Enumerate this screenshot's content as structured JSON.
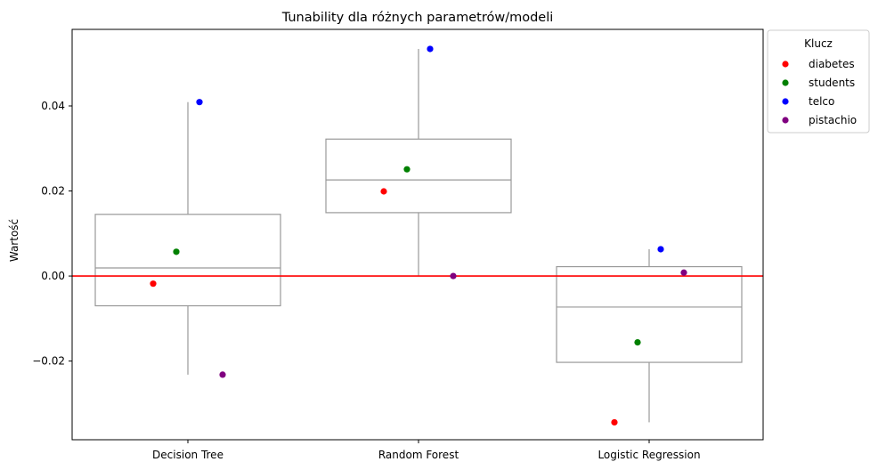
{
  "chart_data": {
    "type": "box",
    "title": "Tunability dla różnych parametrów/modeli",
    "xlabel": "",
    "ylabel": "Wartość",
    "categories": [
      "Decision Tree",
      "Random Forest",
      "Logistic Regression"
    ],
    "ylim": [
      -0.0385,
      0.058
    ],
    "yticks": [
      {
        "value": -0.02,
        "label": "−0.02"
      },
      {
        "value": 0.0,
        "label": "0.00"
      },
      {
        "value": 0.02,
        "label": "0.02"
      },
      {
        "value": 0.04,
        "label": "0.04"
      }
    ],
    "grid": false,
    "boxes": [
      {
        "category": "Decision Tree",
        "whisker_low": -0.0232,
        "q1": -0.007,
        "median": 0.0019,
        "q3": 0.0145,
        "whisker_high": 0.0409
      },
      {
        "category": "Random Forest",
        "whisker_low": 0.0,
        "q1": 0.0149,
        "median": 0.0226,
        "q3": 0.0322,
        "whisker_high": 0.0534
      },
      {
        "category": "Logistic Regression",
        "whisker_low": -0.0344,
        "q1": -0.0203,
        "median": -0.0073,
        "q3": 0.0022,
        "whisker_high": 0.0063
      }
    ],
    "series": [
      {
        "name": "diabetes",
        "color": "#ff0000",
        "values": [
          -0.0018,
          0.0199,
          -0.0344
        ]
      },
      {
        "name": "students",
        "color": "#008000",
        "values": [
          0.0057,
          0.0251,
          -0.0156
        ]
      },
      {
        "name": "telco",
        "color": "#0000ff",
        "values": [
          0.0409,
          0.0534,
          0.0063
        ]
      },
      {
        "name": "pistachio",
        "color": "#800080",
        "values": [
          -0.0232,
          0.0,
          0.0008
        ]
      }
    ],
    "reference_line": {
      "value": 0.0,
      "color": "#ff0000"
    },
    "legend": {
      "title": "Klucz",
      "placement": "outside-top-right"
    }
  }
}
